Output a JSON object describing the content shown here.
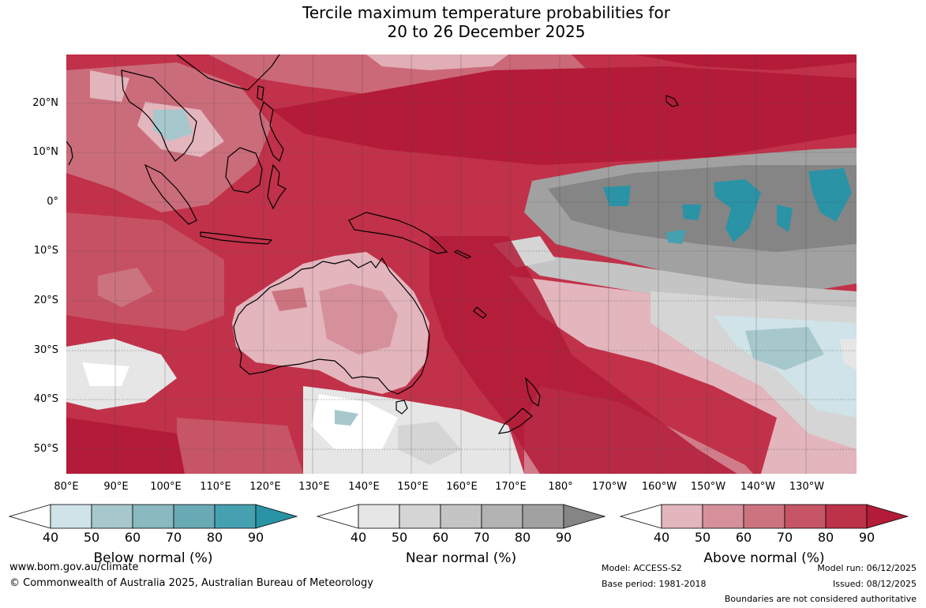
{
  "title_line1": "Tercile maximum temperature probabilities for",
  "title_line2": "20 to 26 December 2025",
  "lat_labels": [
    "20°N",
    "10°N",
    "0°",
    "10°S",
    "20°S",
    "30°S",
    "40°S",
    "50°S"
  ],
  "lon_labels": [
    "80°E",
    "90°E",
    "100°E",
    "110°E",
    "120°E",
    "130°E",
    "140°E",
    "150°E",
    "160°E",
    "170°E",
    "180°",
    "170°W",
    "160°W",
    "150°W",
    "140°W",
    "130°W"
  ],
  "legends": [
    {
      "title": "Below normal (%)",
      "ticks": [
        "40",
        "50",
        "60",
        "70",
        "80",
        "90"
      ],
      "colors": [
        "#cfe3e8",
        "#a6c8cd",
        "#8ab9c0",
        "#6aaab4",
        "#45a0b0",
        "#2a93a6"
      ]
    },
    {
      "title": "Near normal (%)",
      "ticks": [
        "40",
        "50",
        "60",
        "70",
        "80",
        "90"
      ],
      "colors": [
        "#e6e6e6",
        "#d5d5d5",
        "#c4c4c4",
        "#b3b3b3",
        "#a1a1a1",
        "#858585"
      ]
    },
    {
      "title": "Above normal (%)",
      "ticks": [
        "40",
        "50",
        "60",
        "70",
        "80",
        "90"
      ],
      "colors": [
        "#e3b5bd",
        "#d5909c",
        "#cc7380",
        "#c65566",
        "#bd3249",
        "#b31b38"
      ]
    }
  ],
  "footer": {
    "website": "www.bom.gov.au/climate",
    "copyright": "© Commonwealth of Australia 2025, Australian Bureau of Meteorology",
    "model": "Model: ACCESS-S2",
    "base_period": "Base period: 1981-2018",
    "model_run": "Model run: 06/12/2025",
    "issued": "Issued: 08/12/2025",
    "disclaimer": "Boundaries are not considered authoritative"
  }
}
